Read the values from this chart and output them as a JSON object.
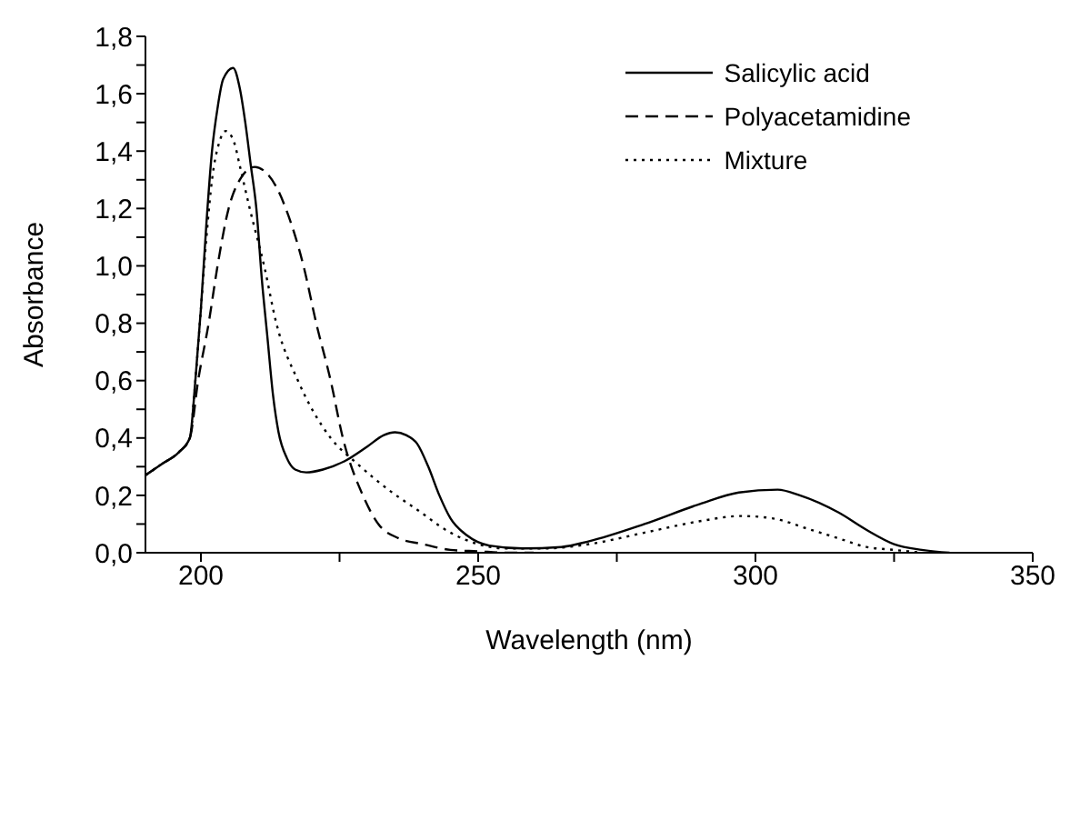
{
  "chart_data": {
    "type": "line",
    "xlabel": "Wavelength (nm)",
    "ylabel": "Absorbance",
    "xlim": [
      190,
      350
    ],
    "ylim": [
      0,
      1.8
    ],
    "xticks": [
      200,
      {
        "value": 225,
        "label": null
      },
      250,
      {
        "value": 275,
        "label": null
      },
      300,
      {
        "value": 325,
        "label": null
      },
      350
    ],
    "yticks": [
      {
        "value": 0,
        "label": "0,0"
      },
      {
        "value": 0.1,
        "label": null
      },
      {
        "value": 0.2,
        "label": "0,2"
      },
      {
        "value": 0.3,
        "label": null
      },
      {
        "value": 0.4,
        "label": "0,4"
      },
      {
        "value": 0.5,
        "label": null
      },
      {
        "value": 0.6,
        "label": "0,6"
      },
      {
        "value": 0.7,
        "label": null
      },
      {
        "value": 0.8,
        "label": "0,8"
      },
      {
        "value": 0.9,
        "label": null
      },
      {
        "value": 1.0,
        "label": "1,0"
      },
      {
        "value": 1.1,
        "label": null
      },
      {
        "value": 1.2,
        "label": "1,2"
      },
      {
        "value": 1.3,
        "label": null
      },
      {
        "value": 1.4,
        "label": "1,4"
      },
      {
        "value": 1.5,
        "label": null
      },
      {
        "value": 1.6,
        "label": "1,6"
      },
      {
        "value": 1.7,
        "label": null
      },
      {
        "value": 1.8,
        "label": "1,8"
      }
    ],
    "legend": "top right",
    "marker": "none",
    "series": [
      {
        "name": "Salicylic acid",
        "color": "#000000",
        "line_style": "solid",
        "x": [
          190,
          193,
          196,
          198,
          199,
          200,
          201,
          202,
          203,
          204,
          205.8,
          207,
          208,
          209,
          210,
          211,
          212,
          213,
          214,
          215.5,
          217,
          219,
          222,
          226,
          230,
          233,
          235,
          237,
          239,
          241,
          243,
          245,
          248,
          252,
          258,
          265,
          270,
          280,
          290,
          297,
          304,
          308,
          315,
          320,
          325,
          330,
          335
        ],
        "values": [
          0.27,
          0.31,
          0.35,
          0.4,
          0.6,
          0.85,
          1.15,
          1.4,
          1.55,
          1.65,
          1.69,
          1.62,
          1.5,
          1.35,
          1.2,
          0.95,
          0.75,
          0.55,
          0.42,
          0.33,
          0.29,
          0.28,
          0.29,
          0.32,
          0.37,
          0.41,
          0.42,
          0.41,
          0.38,
          0.3,
          0.2,
          0.12,
          0.06,
          0.025,
          0.015,
          0.02,
          0.04,
          0.1,
          0.17,
          0.21,
          0.22,
          0.2,
          0.14,
          0.08,
          0.03,
          0.01,
          0.0
        ]
      },
      {
        "name": "Polyacetamidine",
        "color": "#000000",
        "line_style": "dashed",
        "x": [
          190,
          193,
          196,
          198,
          199.5,
          201.4,
          203,
          205,
          207,
          209.7,
          212,
          214,
          215.3,
          218.5,
          220.8,
          223.4,
          225.6,
          229.2,
          232,
          235.7,
          240,
          245,
          250,
          255,
          260
        ],
        "values": [
          0.27,
          0.31,
          0.35,
          0.4,
          0.6,
          0.8,
          1.0,
          1.2,
          1.3,
          1.345,
          1.32,
          1.26,
          1.2,
          1.0,
          0.8,
          0.6,
          0.4,
          0.2,
          0.1,
          0.05,
          0.03,
          0.01,
          0.005,
          0.0,
          0.0
        ]
      },
      {
        "name": "Mixture",
        "color": "#000000",
        "line_style": "dotted",
        "x": [
          190,
          193,
          196,
          198,
          199,
          200,
          201,
          202,
          203.3,
          204.5,
          206,
          207,
          208.8,
          211.4,
          213.6,
          217.5,
          223.4,
          228.2,
          233.8,
          239,
          245,
          250,
          255,
          262,
          270,
          280,
          290,
          297.4,
          303,
          310,
          315,
          320,
          325,
          330
        ],
        "values": [
          0.27,
          0.31,
          0.35,
          0.4,
          0.6,
          0.85,
          1.1,
          1.3,
          1.43,
          1.47,
          1.43,
          1.35,
          1.2,
          1.0,
          0.8,
          0.6,
          0.4,
          0.31,
          0.22,
          0.15,
          0.07,
          0.03,
          0.015,
          0.015,
          0.03,
          0.07,
          0.11,
          0.128,
          0.12,
          0.08,
          0.05,
          0.02,
          0.01,
          0.0
        ]
      }
    ]
  }
}
